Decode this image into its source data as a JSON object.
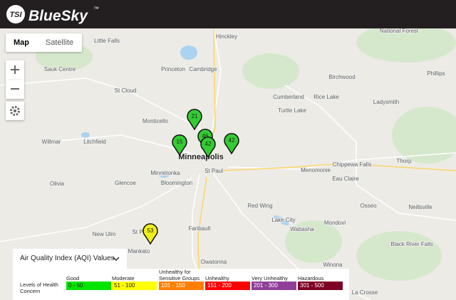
{
  "header": {
    "logo": "BlueSky",
    "trademark": "™"
  },
  "map_controls": {
    "map_button": "Map",
    "satellite_button": "Satellite"
  },
  "places": [
    "Little Falls",
    "Hinckley",
    "National Forest",
    "Sauk Centre",
    "Princeton",
    "Cambridge",
    "Birchwood",
    "Phillips",
    "St Cloud",
    "Cumberland",
    "Rice Lake",
    "Ladysmith",
    "Turtle Lake",
    "Monticello",
    "Willmar",
    "Litchfield",
    "Minneapolis",
    "St Paul",
    "Minnetonka",
    "Bloomington",
    "Chippewa Falls",
    "Menomonie",
    "Thorp",
    "Eau Claire",
    "Olivia",
    "Glencoe",
    "Red Wing",
    "Osseo",
    "Neillsville",
    "Lake City",
    "Wabasha",
    "Mondovi",
    "New Ulm",
    "St Peter",
    "Faribault",
    "Mankato",
    "Owatonna",
    "Black River Falls",
    "Winona",
    "La Crosse"
  ],
  "markers": [
    {
      "value": 21,
      "color": "#33cc33"
    },
    {
      "value": 15,
      "color": "#33cc33"
    },
    {
      "value": 46,
      "color": "#33cc33"
    },
    {
      "value": 42,
      "color": "#33cc33"
    },
    {
      "value": 42,
      "color": "#33cc33"
    },
    {
      "value": 53,
      "color": "#f0ee1a"
    }
  ],
  "legend": {
    "title": "Air Quality Index (AQI) Values",
    "label": "Levels of Health Concern",
    "levels": [
      {
        "name": "Good",
        "range": "0 - 50",
        "color": "#00e400"
      },
      {
        "name": "Moderate",
        "range": "51 - 100",
        "color": "#ffff00"
      },
      {
        "name": "Unhealthy for Sensitive Groups",
        "range": "101 - 150",
        "color": "#ff7e00"
      },
      {
        "name": "Unhealthy",
        "range": "151 - 200",
        "color": "#ff0000"
      },
      {
        "name": "Very Unhealthy",
        "range": "201 - 300",
        "color": "#8f3f97"
      },
      {
        "name": "Hazardous",
        "range": "301 - 500",
        "color": "#7e0023"
      }
    ]
  }
}
